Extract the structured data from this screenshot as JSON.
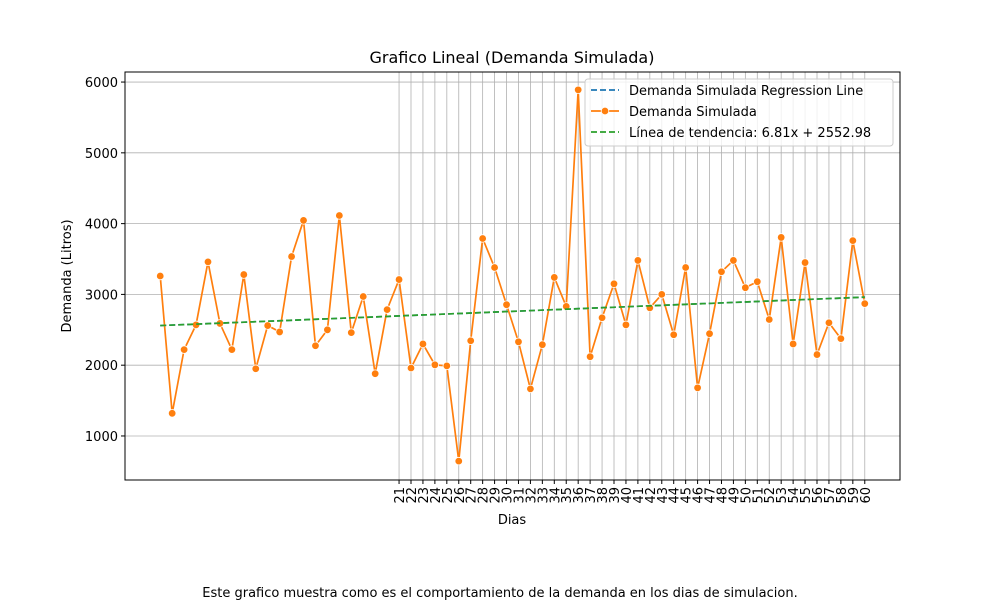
{
  "chart_data": {
    "type": "line",
    "title": "Grafico Lineal (Demanda Simulada)",
    "x_label": "Dias",
    "y_label": "Demanda (Litros)",
    "caption": "Este grafico muestra como es el comportamiento de la demanda en los dias de simulacion.",
    "xlim": [
      -1.95,
      62.95
    ],
    "ylim": [
      378,
      6142
    ],
    "xticks": [
      21,
      22,
      23,
      24,
      25,
      26,
      27,
      28,
      29,
      30,
      31,
      32,
      33,
      34,
      35,
      36,
      37,
      38,
      39,
      40,
      41,
      42,
      43,
      44,
      45,
      46,
      47,
      48,
      49,
      50,
      51,
      52,
      53,
      54,
      55,
      56,
      57,
      58,
      59,
      60
    ],
    "yticks": [
      1000,
      2000,
      3000,
      4000,
      5000,
      6000
    ],
    "grid": true,
    "legend": "upper right",
    "series": [
      {
        "name": "Demanda Simulada Regression Line",
        "color": "#1f77b4",
        "style": "dashed",
        "markers": false,
        "x": [
          1,
          60
        ],
        "values": [
          2559.79,
          2961.58
        ]
      },
      {
        "name": "Demanda Simulada",
        "color": "#ff7f0e",
        "style": "solid",
        "markers": true,
        "x": [
          1,
          2,
          3,
          4,
          5,
          6,
          7,
          8,
          9,
          10,
          11,
          12,
          13,
          14,
          15,
          16,
          17,
          18,
          19,
          20,
          21,
          22,
          23,
          24,
          25,
          26,
          27,
          28,
          29,
          30,
          31,
          32,
          33,
          34,
          35,
          36,
          37,
          38,
          39,
          40,
          41,
          42,
          43,
          44,
          45,
          46,
          47,
          48,
          49,
          50,
          51,
          52,
          53,
          54,
          55,
          56,
          57,
          58,
          59,
          60
        ],
        "values": [
          3260,
          1320,
          2220,
          2570,
          3460,
          2590,
          2220,
          3280,
          1950,
          2560,
          2470,
          3535,
          4045,
          2275,
          2500,
          4115,
          2460,
          2970,
          1880,
          2785,
          3210,
          1960,
          2300,
          2005,
          1990,
          645,
          2345,
          3790,
          3380,
          2855,
          2330,
          1665,
          2290,
          3240,
          2830,
          5890,
          2120,
          2670,
          3150,
          2570,
          3480,
          2810,
          3000,
          2430,
          3380,
          1680,
          2445,
          3320,
          3480,
          3095,
          3180,
          2645,
          3805,
          2300,
          3450,
          2150,
          2600,
          2375,
          3760,
          2870
        ]
      },
      {
        "name": "Línea de tendencia: 6.81x + 2552.98",
        "color": "#2ca02c",
        "style": "dashed",
        "markers": false,
        "x": [
          1,
          60
        ],
        "values": [
          2559.79,
          2961.58
        ]
      }
    ]
  }
}
